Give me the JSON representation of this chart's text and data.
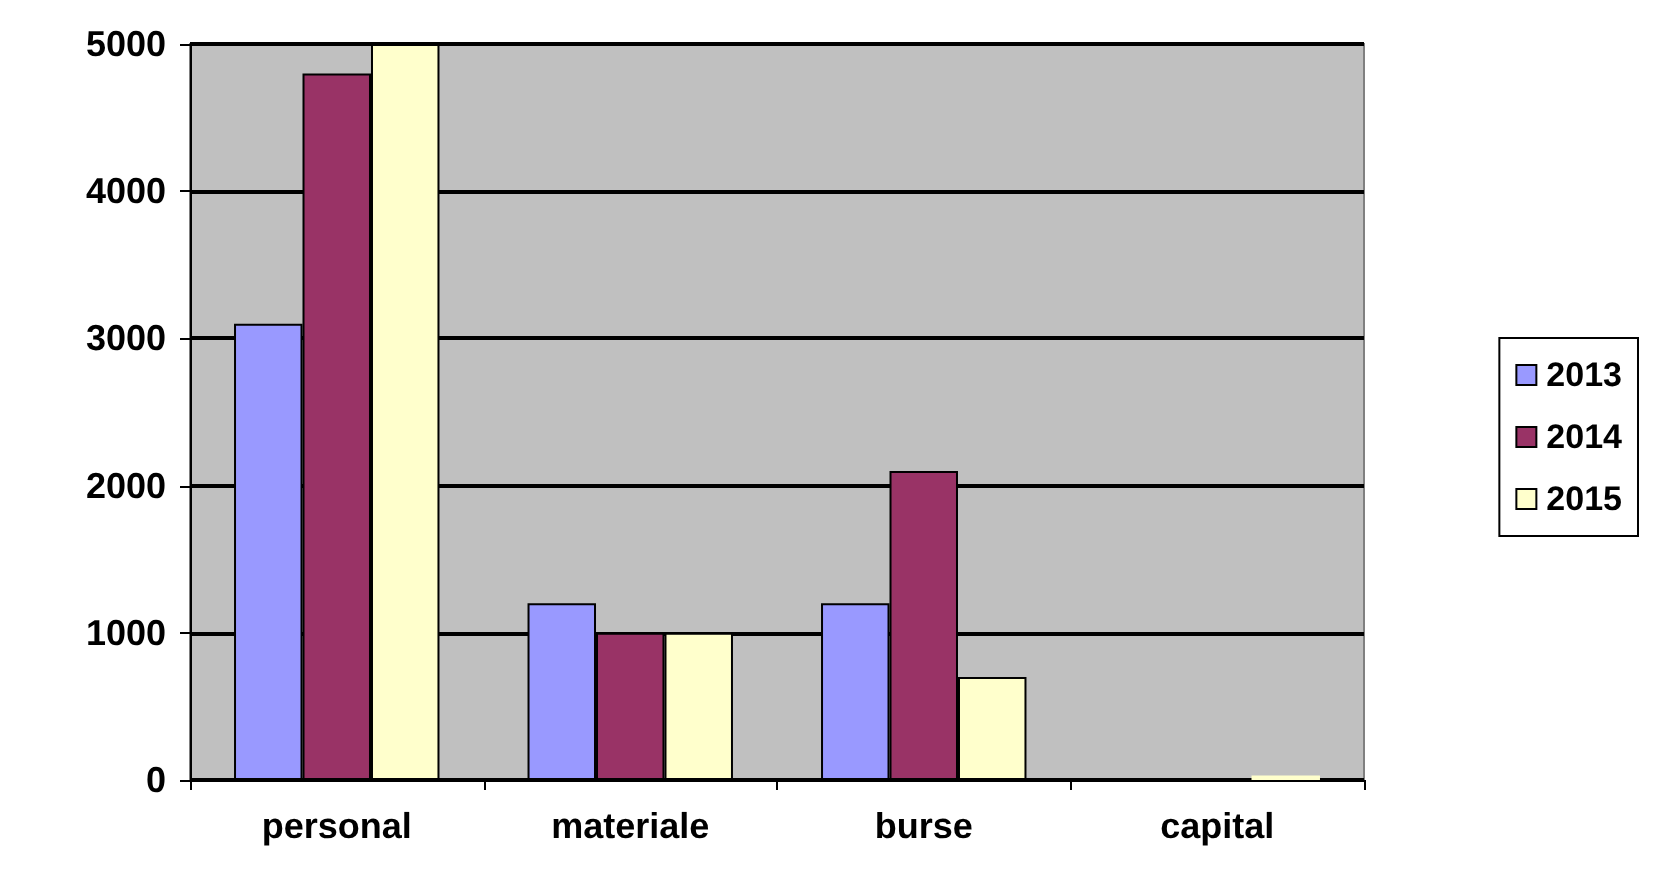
{
  "chart_data": {
    "type": "bar",
    "categories": [
      "personal",
      "materiale",
      "burse",
      "capital"
    ],
    "series": [
      {
        "name": "2013",
        "color": "#9999ff",
        "values": [
          3100,
          1200,
          1200,
          0
        ]
      },
      {
        "name": "2014",
        "color": "#993366",
        "values": [
          4800,
          1000,
          2100,
          0
        ]
      },
      {
        "name": "2015",
        "color": "#ffffcc",
        "values": [
          5000,
          1000,
          700,
          30
        ]
      }
    ],
    "ylim": [
      0,
      5000
    ],
    "yticks": [
      0,
      1000,
      2000,
      3000,
      4000,
      5000
    ],
    "grid": "y",
    "legend": "right"
  }
}
